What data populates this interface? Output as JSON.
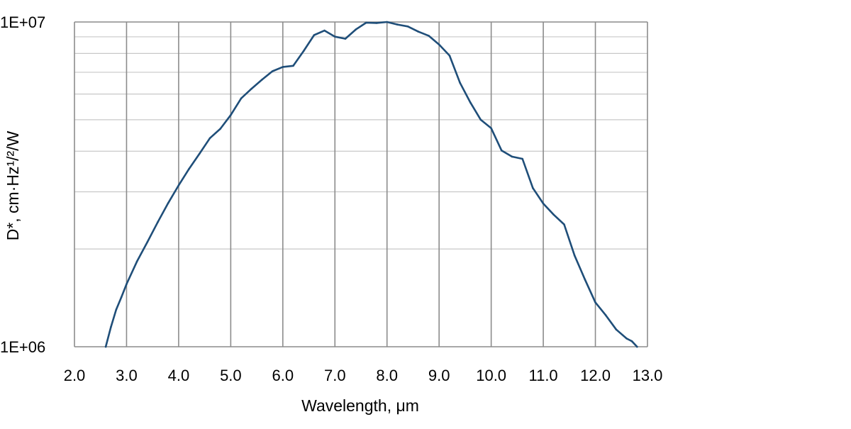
{
  "chart_data": {
    "type": "line",
    "title": "",
    "xlabel": "Wavelength, μm",
    "ylabel": "D*, cm·Hz¹/²/W",
    "xlim": [
      2.0,
      13.0
    ],
    "ylim": [
      1000000,
      10000000
    ],
    "y_scale": "log",
    "grid": true,
    "legend": "none",
    "x_ticks": [
      2.0,
      3.0,
      4.0,
      5.0,
      6.0,
      7.0,
      8.0,
      9.0,
      10.0,
      11.0,
      12.0,
      13.0
    ],
    "x_tick_labels": [
      "2.0",
      "3.0",
      "4.0",
      "5.0",
      "6.0",
      "7.0",
      "8.0",
      "9.0",
      "10.0",
      "11.0",
      "12.0",
      "13.0"
    ],
    "y_tick_labels": [
      "1E+07",
      "1E+06"
    ],
    "y_grid_values": [
      2000000,
      3000000,
      4000000,
      5000000,
      6000000,
      7000000,
      8000000,
      9000000
    ],
    "series": [
      {
        "color": "#1f4e79",
        "x": [
          2.6,
          2.7,
          2.8,
          2.9,
          3.0,
          3.2,
          3.4,
          3.6,
          3.8,
          4.0,
          4.2,
          4.4,
          4.6,
          4.8,
          5.0,
          5.2,
          5.4,
          5.6,
          5.8,
          6.0,
          6.2,
          6.4,
          6.6,
          6.8,
          7.0,
          7.2,
          7.4,
          7.6,
          7.8,
          8.0,
          8.2,
          8.4,
          8.6,
          8.8,
          9.0,
          9.2,
          9.4,
          9.6,
          9.8,
          10.0,
          10.2,
          10.4,
          10.6,
          10.8,
          11.0,
          11.2,
          11.4,
          11.6,
          11.8,
          12.0,
          12.2,
          12.4,
          12.6,
          12.7,
          12.8
        ],
        "y": [
          1000000,
          1150000,
          1300000,
          1420000,
          1560000,
          1830000,
          2100000,
          2420000,
          2770000,
          3140000,
          3530000,
          3930000,
          4390000,
          4690000,
          5170000,
          5820000,
          6230000,
          6640000,
          7050000,
          7270000,
          7330000,
          8140000,
          9110000,
          9410000,
          9010000,
          8880000,
          9480000,
          9950000,
          9930000,
          10000000,
          9820000,
          9690000,
          9340000,
          9070000,
          8520000,
          7880000,
          6500000,
          5650000,
          5000000,
          4710000,
          4020000,
          3850000,
          3790000,
          3080000,
          2760000,
          2550000,
          2380000,
          1910000,
          1610000,
          1370000,
          1250000,
          1130000,
          1060000,
          1040000,
          1000000
        ]
      }
    ]
  }
}
